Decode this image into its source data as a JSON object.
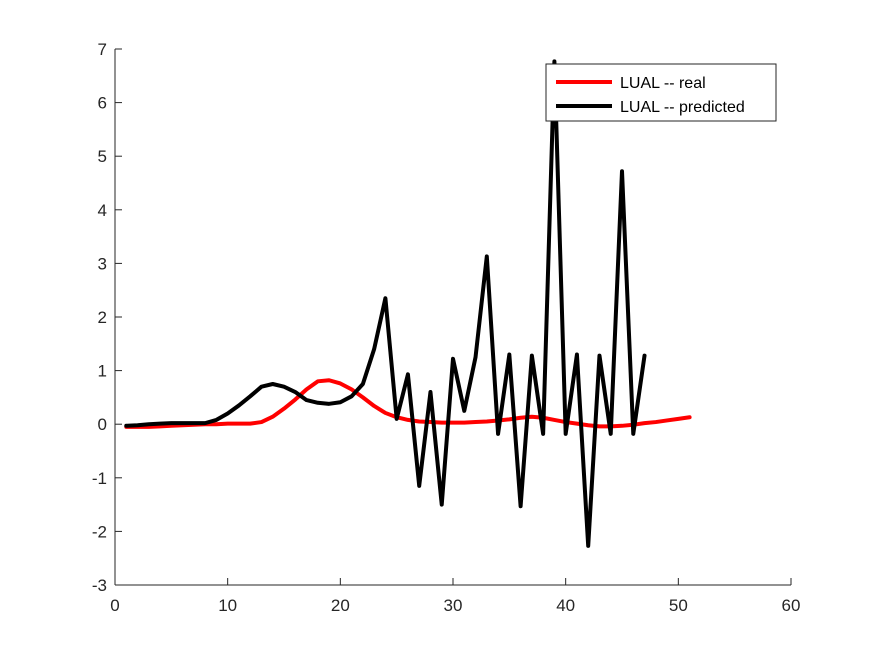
{
  "chart_data": {
    "type": "line",
    "title": "",
    "xlabel": "",
    "ylabel": "",
    "xlim": [
      0,
      60
    ],
    "ylim": [
      -3,
      7
    ],
    "xticks": [
      0,
      10,
      20,
      30,
      40,
      50,
      60
    ],
    "yticks": [
      -3,
      -2,
      -1,
      0,
      1,
      2,
      3,
      4,
      5,
      6,
      7
    ],
    "grid": false,
    "legend_position": "top-right",
    "series": [
      {
        "name": "LUAL -- real",
        "color": "#ff0000",
        "x": [
          1,
          2,
          3,
          4,
          5,
          6,
          7,
          8,
          9,
          10,
          11,
          12,
          13,
          14,
          15,
          16,
          17,
          18,
          19,
          20,
          21,
          22,
          23,
          24,
          25,
          26,
          27,
          28,
          29,
          30,
          31,
          32,
          33,
          34,
          35,
          36,
          37,
          38,
          39,
          40,
          41,
          42,
          43,
          44,
          45,
          46,
          47,
          48,
          49,
          50,
          51
        ],
        "y": [
          -0.05,
          -0.05,
          -0.05,
          -0.04,
          -0.03,
          -0.02,
          -0.01,
          0.0,
          0.0,
          0.01,
          0.01,
          0.01,
          0.04,
          0.14,
          0.29,
          0.46,
          0.65,
          0.8,
          0.82,
          0.76,
          0.65,
          0.5,
          0.34,
          0.21,
          0.13,
          0.08,
          0.05,
          0.04,
          0.03,
          0.03,
          0.03,
          0.04,
          0.05,
          0.07,
          0.09,
          0.12,
          0.14,
          0.12,
          0.08,
          0.04,
          0.01,
          -0.02,
          -0.04,
          -0.04,
          -0.03,
          -0.01,
          0.02,
          0.04,
          0.07,
          0.1,
          0.13
        ]
      },
      {
        "name": "LUAL -- predicted",
        "color": "#000000",
        "x": [
          1,
          2,
          3,
          4,
          5,
          6,
          7,
          8,
          9,
          10,
          11,
          12,
          13,
          14,
          15,
          16,
          17,
          18,
          19,
          20,
          21,
          22,
          23,
          24,
          25,
          26,
          27,
          28,
          29,
          30,
          31,
          32,
          33,
          34,
          35,
          36,
          37,
          38,
          39,
          40,
          41,
          42,
          43,
          44,
          45,
          46,
          47
        ],
        "y": [
          -0.03,
          -0.02,
          0.0,
          0.01,
          0.02,
          0.02,
          0.02,
          0.02,
          0.08,
          0.2,
          0.35,
          0.52,
          0.7,
          0.75,
          0.7,
          0.6,
          0.45,
          0.4,
          0.38,
          0.41,
          0.52,
          0.75,
          1.4,
          2.35,
          0.1,
          0.93,
          -1.15,
          0.6,
          -1.5,
          1.22,
          0.25,
          1.25,
          3.13,
          -0.18,
          1.3,
          -1.53,
          1.28,
          -0.18,
          6.77,
          -0.18,
          1.3,
          -2.27,
          1.28,
          -0.18,
          4.72,
          -0.18,
          1.28
        ]
      }
    ]
  }
}
